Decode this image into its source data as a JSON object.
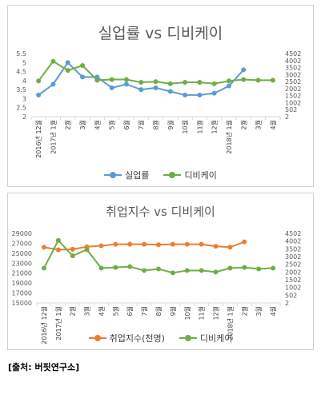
{
  "source": "[출처: 버핏연구소]",
  "chart_data": [
    {
      "type": "line",
      "title": "실업률 vs 디비케이",
      "categories": [
        "2016년 12월",
        "2017년 1월",
        "2월",
        "3월",
        "4월",
        "5월",
        "6월",
        "7월",
        "8월",
        "9월",
        "10월",
        "11월",
        "12월",
        "2018년 1월",
        "2월",
        "3월",
        "4월"
      ],
      "y_left": {
        "ticks": [
          "2",
          "2.5",
          "3",
          "3.5",
          "4",
          "4.5",
          "5",
          "5.5"
        ],
        "min": 2,
        "max": 5.5
      },
      "y_right": {
        "ticks": [
          "2",
          "502",
          "1002",
          "1502",
          "2002",
          "2502",
          "3002",
          "3502",
          "4002",
          "4502"
        ],
        "min": 2,
        "max": 4502
      },
      "series": [
        {
          "name": "실업률",
          "axis": "left",
          "color": "#5b9bd5",
          "values": [
            3.2,
            3.8,
            5.0,
            4.2,
            4.2,
            3.6,
            3.8,
            3.5,
            3.6,
            3.4,
            3.2,
            3.2,
            3.3,
            3.7,
            4.6,
            null,
            null
          ]
        },
        {
          "name": "디비케이",
          "axis": "right",
          "color": "#70ad47",
          "values": [
            2550,
            3950,
            3300,
            3650,
            2600,
            2650,
            2650,
            2450,
            2500,
            2350,
            2450,
            2450,
            2350,
            2550,
            2650,
            2600,
            2600
          ]
        }
      ]
    },
    {
      "type": "line",
      "title": "취업지수 vs 디비케이",
      "categories": [
        "2016년 12월",
        "2017년 1월",
        "2월",
        "3월",
        "4월",
        "5월",
        "6월",
        "7월",
        "8월",
        "9월",
        "10월",
        "11월",
        "12월",
        "2018년 1월",
        "2월",
        "3월",
        "4월"
      ],
      "y_left": {
        "ticks": [
          "15000",
          "17000",
          "19000",
          "21000",
          "23000",
          "25000",
          "27000",
          "29000"
        ],
        "min": 15000,
        "max": 29000
      },
      "y_right": {
        "ticks": [
          "2",
          "502",
          "1002",
          "1502",
          "2002",
          "2502",
          "3002",
          "3502",
          "4002",
          "4502"
        ],
        "min": 2,
        "max": 4502
      },
      "series": [
        {
          "name": "취업지수(천명)",
          "axis": "left",
          "color": "#ed7d31",
          "values": [
            26200,
            25700,
            25800,
            26300,
            26500,
            26800,
            26800,
            26800,
            26700,
            26800,
            26800,
            26800,
            26400,
            26200,
            27300,
            null,
            null
          ]
        },
        {
          "name": "디비케이",
          "axis": "right",
          "color": "#70ad47",
          "values": [
            2250,
            4050,
            3050,
            3450,
            2250,
            2300,
            2350,
            2100,
            2200,
            1950,
            2100,
            2100,
            2000,
            2250,
            2300,
            2200,
            2250
          ]
        }
      ]
    }
  ]
}
